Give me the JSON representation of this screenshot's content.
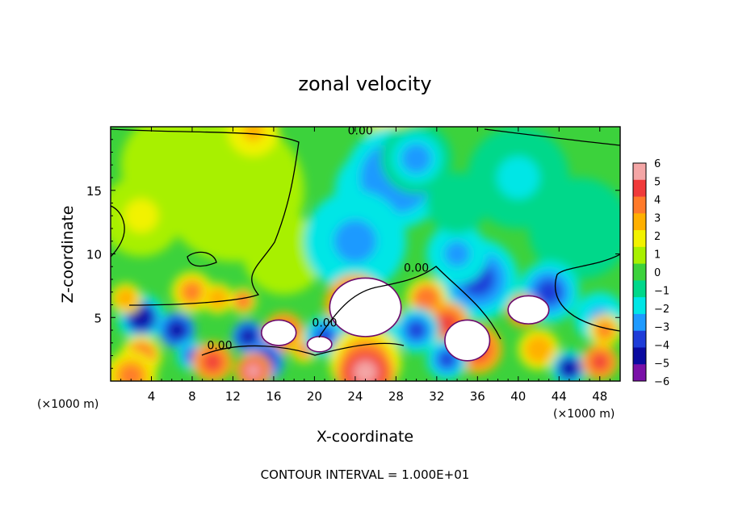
{
  "chart_data": {
    "type": "heatmap",
    "title": "zonal velocity",
    "xlabel": "X-coordinate",
    "ylabel": "Z-coordinate",
    "x_unit_label": "(×1000 m)",
    "x_unit_label_right": "(×1000 m)",
    "footer": "CONTOUR INTERVAL = 1.000E+01",
    "xlim": [
      0,
      50
    ],
    "ylim": [
      0,
      20
    ],
    "x_ticks": [
      4,
      8,
      12,
      16,
      20,
      24,
      28,
      32,
      36,
      40,
      44,
      48
    ],
    "x_tick_labels": [
      "4",
      "8",
      "12",
      "16",
      "20",
      "24",
      "28",
      "32",
      "36",
      "40",
      "44",
      "48"
    ],
    "y_ticks": [
      5,
      10,
      15
    ],
    "y_tick_labels": [
      "5",
      "10",
      "15"
    ],
    "contour_labels": [
      {
        "text": "0.00",
        "x": 24.5,
        "y": 19.4
      },
      {
        "text": "0.00",
        "x": 30.0,
        "y": 8.6
      },
      {
        "text": "0.00",
        "x": 21.0,
        "y": 4.3
      },
      {
        "text": "0.00",
        "x": 10.7,
        "y": 2.5
      }
    ],
    "colorbar": {
      "labels": [
        "6",
        "5",
        "4",
        "3",
        "2",
        "1",
        "0",
        "−1",
        "−2",
        "−3",
        "−4",
        "−5",
        "−6"
      ],
      "colors": [
        "#f4a6a6",
        "#f03a3a",
        "#ff7a2a",
        "#ffb000",
        "#f2f200",
        "#a8f000",
        "#3cd23c",
        "#00d88a",
        "#00e6e6",
        "#1e9aff",
        "#1e3cd8",
        "#0a0aa0",
        "#7a10a8"
      ]
    },
    "field_blobs": [
      {
        "x": 12,
        "y": 15,
        "r": 7,
        "v": 1.3
      },
      {
        "x": 6,
        "y": 17,
        "r": 5,
        "v": 1.2
      },
      {
        "x": 3,
        "y": 13,
        "r": 4,
        "v": 1.6
      },
      {
        "x": 17,
        "y": 10,
        "r": 4,
        "v": 1.4
      },
      {
        "x": 14,
        "y": 19.7,
        "r": 2.5,
        "v": 2.8
      },
      {
        "x": 28,
        "y": 19.7,
        "r": 3,
        "v": 2.5
      },
      {
        "x": 26,
        "y": 15,
        "r": 4,
        "v": -4.3
      },
      {
        "x": 28,
        "y": 16,
        "r": 5,
        "v": -3.2
      },
      {
        "x": 30,
        "y": 17.5,
        "r": 3.5,
        "v": -2.5
      },
      {
        "x": 24.5,
        "y": 10.5,
        "r": 2.5,
        "v": -5.2
      },
      {
        "x": 24,
        "y": 11,
        "r": 5,
        "v": -3
      },
      {
        "x": 36,
        "y": 8,
        "r": 4,
        "v": -4
      },
      {
        "x": 34,
        "y": 10,
        "r": 3,
        "v": -3
      },
      {
        "x": 40,
        "y": 16,
        "r": 5,
        "v": -1.6
      },
      {
        "x": 46,
        "y": 12,
        "r": 5,
        "v": -1.3
      },
      {
        "x": 43,
        "y": 7,
        "r": 3,
        "v": -3.8
      },
      {
        "x": 48,
        "y": 5,
        "r": 2.5,
        "v": -2.8
      },
      {
        "x": 34,
        "y": 14,
        "r": 3,
        "v": -1.2
      },
      {
        "x": 8,
        "y": 7,
        "r": 2,
        "v": 4
      },
      {
        "x": 13,
        "y": 6.3,
        "r": 1.3,
        "v": 4.5
      },
      {
        "x": 10.5,
        "y": 6.5,
        "r": 1.5,
        "v": 3.3
      },
      {
        "x": 3,
        "y": 5,
        "r": 2.3,
        "v": -4.5
      },
      {
        "x": 6.5,
        "y": 4,
        "r": 1.8,
        "v": -4.8
      },
      {
        "x": 8,
        "y": 2,
        "r": 1.5,
        "v": -3.8
      },
      {
        "x": 3,
        "y": 2,
        "r": 2,
        "v": 4.5
      },
      {
        "x": 1.5,
        "y": 6.5,
        "r": 1.5,
        "v": 3.2
      },
      {
        "x": 13.5,
        "y": 3.5,
        "r": 1.6,
        "v": -4.6
      },
      {
        "x": 17,
        "y": 3.8,
        "r": 2,
        "v": 5.2
      },
      {
        "x": 15,
        "y": 1.5,
        "r": 2,
        "v": -4.8
      },
      {
        "x": 10,
        "y": 1.5,
        "r": 2,
        "v": 4.8
      },
      {
        "x": 19,
        "y": 2.5,
        "r": 1.3,
        "v": 4
      },
      {
        "x": 24,
        "y": 6,
        "r": 3,
        "v": 5.4
      },
      {
        "x": 26,
        "y": 5,
        "r": 2.5,
        "v": 5.5
      },
      {
        "x": 25,
        "y": 3.5,
        "r": 3,
        "v": -4.5
      },
      {
        "x": 21,
        "y": 3.5,
        "r": 2,
        "v": -3.5
      },
      {
        "x": 31,
        "y": 6.5,
        "r": 2,
        "v": 4.5
      },
      {
        "x": 33,
        "y": 4.5,
        "r": 2.2,
        "v": 5
      },
      {
        "x": 36,
        "y": 2.5,
        "r": 2.4,
        "v": 5.5
      },
      {
        "x": 30,
        "y": 4,
        "r": 2.2,
        "v": -4.3
      },
      {
        "x": 33,
        "y": 1.7,
        "r": 2,
        "v": -4
      },
      {
        "x": 40.5,
        "y": 5.5,
        "r": 1.6,
        "v": 5.4
      },
      {
        "x": 42,
        "y": 2.5,
        "r": 2,
        "v": 3.4
      },
      {
        "x": 45,
        "y": 1,
        "r": 1.8,
        "v": -4.5
      },
      {
        "x": 48.5,
        "y": 4,
        "r": 1.6,
        "v": 4
      },
      {
        "x": 48,
        "y": 1.5,
        "r": 1.8,
        "v": 5.2
      },
      {
        "x": 25,
        "y": 1.5,
        "r": 3.5,
        "v": 3.5
      },
      {
        "x": 25,
        "y": 0.7,
        "r": 2.8,
        "v": 6.4
      },
      {
        "x": 14,
        "y": 0.8,
        "r": 1.8,
        "v": 5.8
      },
      {
        "x": 2,
        "y": 0.4,
        "r": 2.5,
        "v": 4
      }
    ],
    "saturated_regions": [
      {
        "x": 25,
        "y": 5.8,
        "rx": 3.5,
        "ry": 2.3
      },
      {
        "x": 41,
        "y": 5.6,
        "rx": 2,
        "ry": 1.1
      },
      {
        "x": 35,
        "y": 3.2,
        "rx": 2.2,
        "ry": 1.6
      },
      {
        "x": 16.5,
        "y": 3.8,
        "rx": 1.7,
        "ry": 1
      },
      {
        "x": 20.5,
        "y": 2.9,
        "rx": 1.2,
        "ry": 0.6
      }
    ]
  }
}
